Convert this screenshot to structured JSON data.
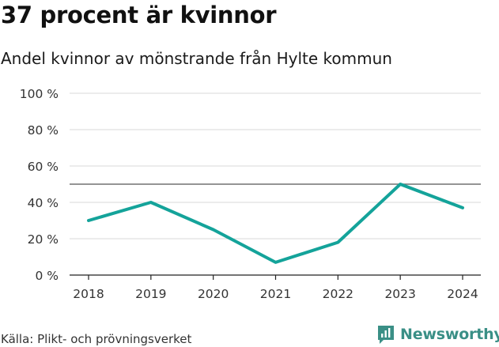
{
  "title": "37 procent är kvinnor",
  "subtitle": "Andel kvinnor av mönstrande från Hylte kommun",
  "source": "Källa: Plikt- och prövningsverket",
  "brand": "Newsworthy",
  "colors": {
    "line": "#14a39a",
    "grid": "#d9d9d9",
    "reference": "#707070",
    "brand": "#3a8f86"
  },
  "chart_data": {
    "type": "line",
    "title": "37 procent är kvinnor",
    "subtitle": "Andel kvinnor av mönstrande från Hylte kommun",
    "xlabel": "",
    "ylabel": "",
    "x": [
      "2018",
      "2019",
      "2020",
      "2021",
      "2022",
      "2023",
      "2024"
    ],
    "series": [
      {
        "name": "Andel kvinnor",
        "values": [
          30,
          40,
          25,
          7,
          18,
          50,
          37
        ]
      }
    ],
    "reference_line": 50,
    "ylim": [
      0,
      100
    ],
    "yticks": [
      0,
      20,
      40,
      60,
      80,
      100
    ],
    "ytick_labels": [
      "0 %",
      "20 %",
      "40 %",
      "60 %",
      "80 %",
      "100 %"
    ],
    "grid": true,
    "legend": "none"
  }
}
